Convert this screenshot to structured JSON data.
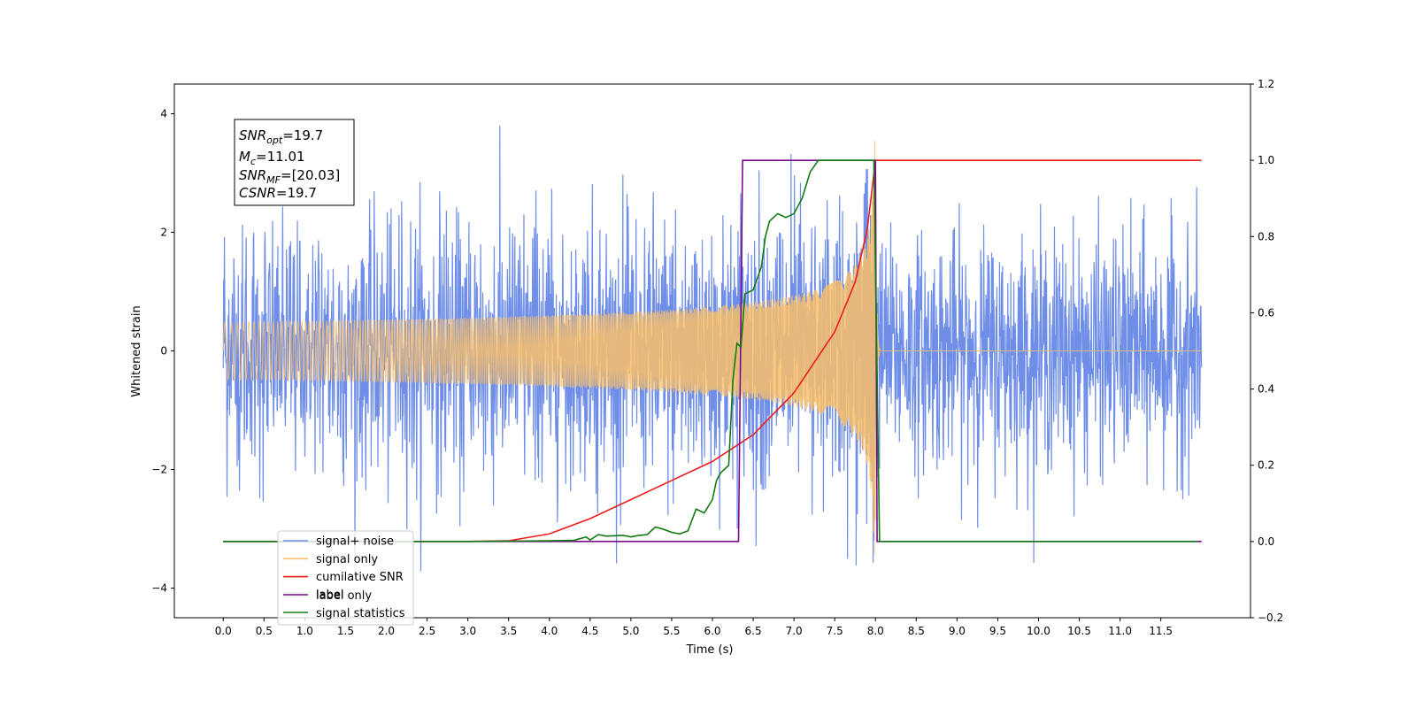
{
  "chart_data": {
    "type": "line",
    "xlabel": "Time (s)",
    "ylabel": "Whitened strain",
    "xlim": [
      -0.6,
      12.6
    ],
    "ylim": [
      -4.5,
      4.5
    ],
    "y2lim": [
      -0.2,
      1.2
    ],
    "x_ticks": [
      "0.0",
      "0.5",
      "1.0",
      "1.5",
      "2.0",
      "2.5",
      "3.0",
      "3.5",
      "4.0",
      "4.5",
      "5.0",
      "5.5",
      "6.0",
      "6.5",
      "7.0",
      "7.5",
      "8.0",
      "8.5",
      "9.0",
      "9.5",
      "10.0",
      "10.5",
      "11.0",
      "11.5"
    ],
    "y_ticks": [
      "4",
      "2",
      "0",
      "−2",
      "−4"
    ],
    "y2_ticks": [
      "1.2",
      "1.0",
      "0.8",
      "0.6",
      "0.4",
      "0.2",
      "0.0",
      "−0.2"
    ],
    "annotation": {
      "snr_opt": "SNR",
      "snr_opt_sub": "opt",
      "snr_opt_val": "=19.7",
      "mc": "M",
      "mc_sub": "c",
      "mc_val": "=11.01",
      "snr_mf": "SNR",
      "snr_mf_sub": "MF",
      "snr_mf_val": "=[20.03]",
      "csnr": "CSNR",
      "csnr_val": "=19.7"
    },
    "series": [
      {
        "name": "signal+ noise",
        "color": "#6f8ee8",
        "noise_std": 1.0,
        "x_range": [
          0.0,
          12.0
        ]
      },
      {
        "name": "signal only",
        "color": "#f9c06a",
        "merger_time": 8.0,
        "peak_amplitude": 3.6,
        "x_range": [
          0.0,
          12.0
        ]
      },
      {
        "name": "cumilative SNR",
        "color": "#ee1c1c",
        "points": [
          [
            0.0,
            0.0
          ],
          [
            3.0,
            0.0
          ],
          [
            3.5,
            0.002
          ],
          [
            4.0,
            0.02
          ],
          [
            4.5,
            0.06
          ],
          [
            5.0,
            0.11
          ],
          [
            5.5,
            0.16
          ],
          [
            6.0,
            0.21
          ],
          [
            6.5,
            0.28
          ],
          [
            7.0,
            0.39
          ],
          [
            7.5,
            0.55
          ],
          [
            7.75,
            0.68
          ],
          [
            7.9,
            0.82
          ],
          [
            8.0,
            1.0
          ],
          [
            12.0,
            1.0
          ]
        ]
      },
      {
        "name": "label",
        "color": "#7a0a8c",
        "points": [
          [
            0.0,
            0.0
          ],
          [
            6.32,
            0.0
          ],
          [
            6.37,
            1.0
          ],
          [
            8.0,
            1.0
          ],
          [
            8.02,
            0.0
          ],
          [
            12.0,
            0.0
          ]
        ]
      },
      {
        "name": "label only",
        "color": "#cccccc",
        "hidden": true
      },
      {
        "name": "signal statistics",
        "color": "#127a12",
        "points": [
          [
            0.0,
            0.0
          ],
          [
            3.0,
            0.0
          ],
          [
            3.5,
            0.001
          ],
          [
            4.0,
            0.002
          ],
          [
            4.3,
            0.003
          ],
          [
            4.45,
            0.012
          ],
          [
            4.5,
            0.004
          ],
          [
            4.6,
            0.018
          ],
          [
            4.7,
            0.014
          ],
          [
            4.9,
            0.016
          ],
          [
            5.0,
            0.012
          ],
          [
            5.1,
            0.016
          ],
          [
            5.2,
            0.018
          ],
          [
            5.3,
            0.038
          ],
          [
            5.4,
            0.032
          ],
          [
            5.5,
            0.024
          ],
          [
            5.6,
            0.02
          ],
          [
            5.7,
            0.028
          ],
          [
            5.8,
            0.085
          ],
          [
            5.9,
            0.075
          ],
          [
            6.0,
            0.11
          ],
          [
            6.05,
            0.16
          ],
          [
            6.1,
            0.18
          ],
          [
            6.2,
            0.2
          ],
          [
            6.25,
            0.42
          ],
          [
            6.3,
            0.52
          ],
          [
            6.35,
            0.51
          ],
          [
            6.4,
            0.65
          ],
          [
            6.5,
            0.66
          ],
          [
            6.6,
            0.72
          ],
          [
            6.65,
            0.8
          ],
          [
            6.7,
            0.84
          ],
          [
            6.8,
            0.86
          ],
          [
            6.9,
            0.85
          ],
          [
            7.0,
            0.86
          ],
          [
            7.1,
            0.9
          ],
          [
            7.2,
            0.97
          ],
          [
            7.3,
            1.0
          ],
          [
            7.98,
            1.0
          ],
          [
            8.05,
            0.0
          ],
          [
            11.95,
            0.0
          ]
        ]
      }
    ]
  }
}
